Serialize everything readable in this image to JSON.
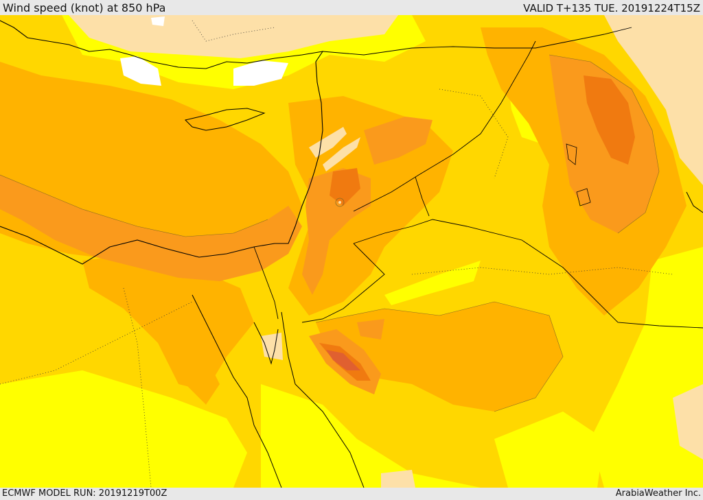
{
  "header": {
    "title": "Wind speed (knot) at 850 hPa",
    "valid_time": "VALID T+135 TUE. 20191224T15Z"
  },
  "footer": {
    "model_run": "ECMWF MODEL RUN: 20191219T00Z",
    "credit": "ArabiaWeather Inc."
  },
  "map": {
    "field": "wind speed 850 hPa",
    "region": "Eastern Mediterranean / Middle East",
    "colors": {
      "calm": "#ffffff",
      "very_low": "#fde0a8",
      "low": "#ffff00",
      "moderate": "#ffd700",
      "elevated": "#ffb300",
      "high": "#fa9a1c",
      "very_high": "#f07a10",
      "max": "#e06030",
      "coastline": "#000000",
      "contour": "#8a6a20"
    }
  }
}
